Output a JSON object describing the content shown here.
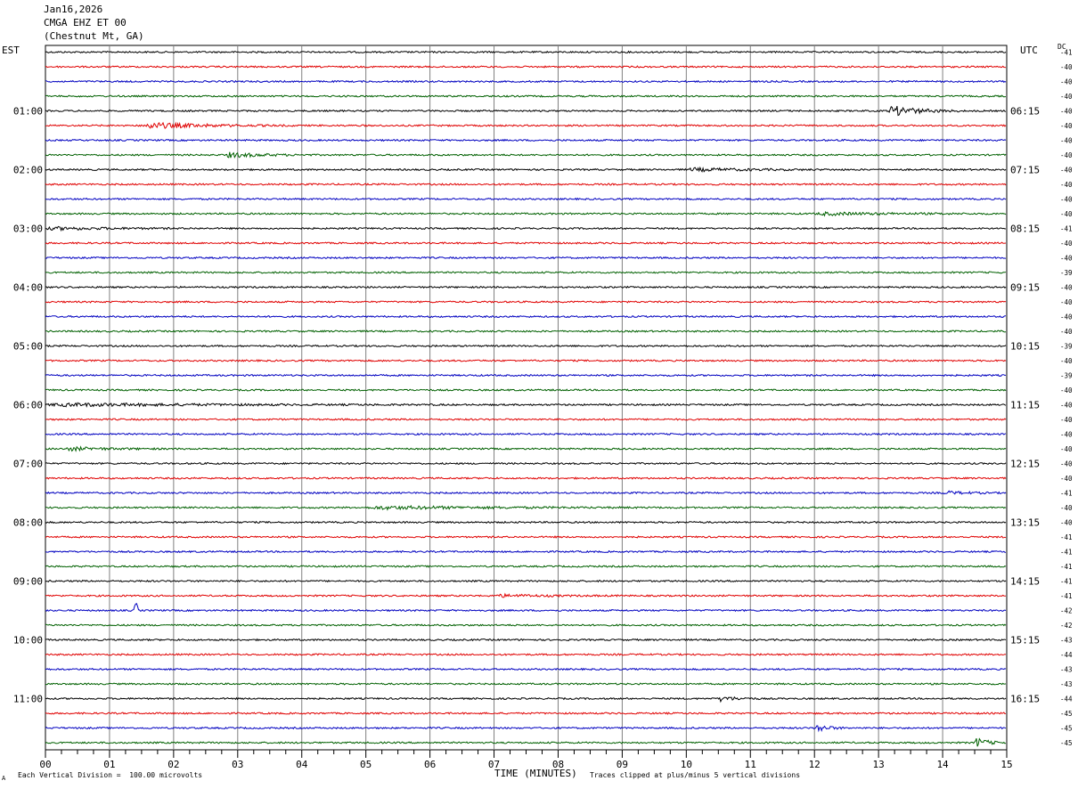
{
  "header": {
    "date": "Jan16,2026",
    "station": "CMGA EHZ ET 00",
    "location": "(Chestnut Mt, GA)"
  },
  "tz_left": "EST",
  "tz_right": "UTC",
  "dc_label": "DC",
  "footer": {
    "scale": "Each Vertical Division =  100.00 microvolts",
    "clip": "Traces clipped at plus/minus 5 vertical divisions",
    "mark": "A"
  },
  "colors": {
    "trace": [
      "#000000",
      "#e00000",
      "#0000c0",
      "#006000"
    ],
    "grid": "#808080"
  },
  "chart_data": {
    "type": "line",
    "title": "CMGA EHZ ET 00 (Chestnut Mt, GA)",
    "xlabel": "TIME (MINUTES)",
    "xlim": [
      0,
      15
    ],
    "x_ticks": [
      "00",
      "01",
      "02",
      "03",
      "04",
      "05",
      "06",
      "07",
      "08",
      "09",
      "10",
      "11",
      "12",
      "13",
      "14",
      "15"
    ],
    "row_minutes": 15,
    "rows": 48,
    "left_labels": [
      {
        "row": 4,
        "text": "01:00"
      },
      {
        "row": 8,
        "text": "02:00"
      },
      {
        "row": 12,
        "text": "03:00"
      },
      {
        "row": 16,
        "text": "04:00"
      },
      {
        "row": 20,
        "text": "05:00"
      },
      {
        "row": 24,
        "text": "06:00"
      },
      {
        "row": 28,
        "text": "07:00"
      },
      {
        "row": 32,
        "text": "08:00"
      },
      {
        "row": 36,
        "text": "09:00"
      },
      {
        "row": 40,
        "text": "10:00"
      },
      {
        "row": 44,
        "text": "11:00"
      }
    ],
    "right_labels": [
      {
        "row": 4,
        "text": "06:15"
      },
      {
        "row": 8,
        "text": "07:15"
      },
      {
        "row": 12,
        "text": "08:15"
      },
      {
        "row": 16,
        "text": "09:15"
      },
      {
        "row": 20,
        "text": "10:15"
      },
      {
        "row": 24,
        "text": "11:15"
      },
      {
        "row": 28,
        "text": "12:15"
      },
      {
        "row": 32,
        "text": "13:15"
      },
      {
        "row": 36,
        "text": "14:15"
      },
      {
        "row": 40,
        "text": "15:15"
      },
      {
        "row": 44,
        "text": "16:15"
      }
    ],
    "dc_offsets": [
      "-41",
      "-40",
      "-40",
      "-40",
      "-40",
      "-40",
      "-40",
      "-40",
      "-40",
      "-40",
      "-40",
      "-40",
      "-41",
      "-40",
      "-40",
      "-39",
      "-40",
      "-40",
      "-40",
      "-40",
      "-39",
      "-40",
      "-39",
      "-40",
      "-40",
      "-40",
      "-40",
      "-40",
      "-40",
      "-40",
      "-41",
      "-40",
      "-40",
      "-41",
      "-41",
      "-41",
      "-41",
      "-41",
      "-42",
      "-42",
      "-43",
      "-44",
      "-43",
      "-43",
      "-44",
      "-45",
      "-45",
      "-45"
    ],
    "events": [
      {
        "row": 4,
        "start": 13.15,
        "end": 14.3,
        "amp": 6.5
      },
      {
        "row": 5,
        "start": 1.5,
        "end": 3.9,
        "amp": 3.5
      },
      {
        "row": 7,
        "start": 2.8,
        "end": 4.2,
        "amp": 3.0
      },
      {
        "row": 8,
        "start": 10.0,
        "end": 12.5,
        "amp": 1.8
      },
      {
        "row": 11,
        "start": 12.0,
        "end": 15.0,
        "amp": 1.6
      },
      {
        "row": 12,
        "start": 0.0,
        "end": 2.6,
        "amp": 1.6
      },
      {
        "row": 24,
        "start": 0.0,
        "end": 6.5,
        "amp": 1.6
      },
      {
        "row": 27,
        "start": 0.3,
        "end": 2.0,
        "amp": 2.0
      },
      {
        "row": 30,
        "start": 14.0,
        "end": 15.0,
        "amp": 1.8
      },
      {
        "row": 31,
        "start": 5.0,
        "end": 10.0,
        "amp": 1.7
      },
      {
        "row": 37,
        "start": 7.0,
        "end": 9.0,
        "amp": 1.5
      },
      {
        "row": 38,
        "start": 1.38,
        "end": 1.45,
        "amp": 8.0
      },
      {
        "row": 44,
        "start": 10.5,
        "end": 11.2,
        "amp": 3.0
      },
      {
        "row": 46,
        "start": 12.0,
        "end": 12.5,
        "amp": 5.0
      },
      {
        "row": 47,
        "start": 14.5,
        "end": 15.0,
        "amp": 6.0
      }
    ]
  }
}
